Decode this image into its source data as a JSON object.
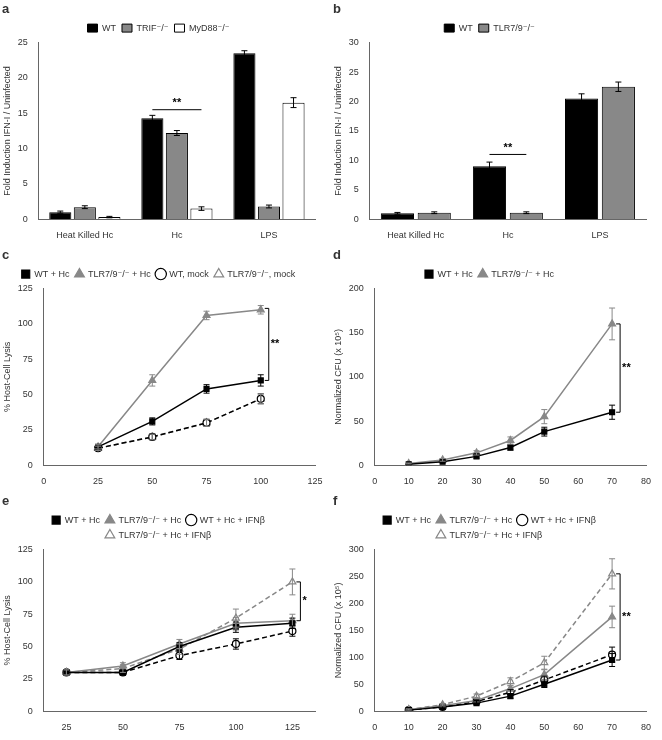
{
  "chart_data": [
    {
      "type": "bar",
      "title": "a",
      "ylabel": "Fold Induction IFN-I / Uninfected",
      "categories": [
        "Heat Killed Hc",
        "Hc",
        "LPS"
      ],
      "series": [
        {
          "name": "WT",
          "color": "#000000",
          "values": [
            1.0,
            14.3,
            23.5
          ],
          "errors": [
            0.15,
            0.4,
            0.35
          ]
        },
        {
          "name": "TRIF⁻/⁻",
          "color": "#888888",
          "values": [
            1.7,
            12.2,
            1.8
          ],
          "errors": [
            0.2,
            0.35,
            0.2
          ]
        },
        {
          "name": "MyD88⁻/⁻",
          "color": "#ffffff",
          "values": [
            0.3,
            1.5,
            16.5
          ],
          "errors": [
            0.1,
            0.25,
            0.7
          ]
        }
      ],
      "ylim": [
        0,
        25
      ],
      "yticks": [
        0,
        5,
        10,
        15,
        20,
        25
      ],
      "grid": false,
      "legend": "top",
      "annotations": [
        {
          "text": "**",
          "y": 15.5,
          "category": "Hc"
        }
      ]
    },
    {
      "type": "bar",
      "title": "b",
      "ylabel": "Fold Induction IFN-I / Uninfected",
      "categories": [
        "Heat Killed Hc",
        "Hc",
        "LPS"
      ],
      "series": [
        {
          "name": "WT",
          "color": "#000000",
          "values": [
            1.0,
            9.0,
            20.5
          ],
          "errors": [
            0.15,
            0.7,
            0.8
          ]
        },
        {
          "name": "TLR7/9⁻/⁻",
          "color": "#888888",
          "values": [
            1.1,
            1.1,
            22.5
          ],
          "errors": [
            0.15,
            0.15,
            0.8
          ]
        }
      ],
      "ylim": [
        0,
        30
      ],
      "yticks": [
        0,
        5,
        10,
        15,
        20,
        25,
        30
      ],
      "grid": false,
      "legend": "top",
      "annotations": [
        {
          "text": "**",
          "y": 11.0,
          "category": "Hc"
        }
      ]
    },
    {
      "type": "line",
      "title": "c",
      "ylabel": "% Host-Cell Lysis",
      "x": [
        25,
        50,
        75,
        100
      ],
      "series": [
        {
          "name": "WT + Hc",
          "color": "#000000",
          "marker": "square",
          "line_style": "solid",
          "values": [
            13,
            31,
            54,
            60
          ],
          "errors": [
            1.5,
            2.5,
            3,
            4
          ]
        },
        {
          "name": "TLR7/9⁻/⁻ + Hc",
          "color": "#888888",
          "marker": "triangle",
          "line_style": "solid",
          "values": [
            13,
            60,
            106,
            110
          ],
          "errors": [
            1.5,
            4,
            3,
            3
          ]
        },
        {
          "name": "WT, mock",
          "color": "#000000",
          "marker": "hollow circle",
          "line_style": "dashed",
          "values": [
            12,
            20,
            30,
            47
          ],
          "errors": [
            1.5,
            2,
            2.5,
            3.5
          ]
        },
        {
          "name": "TLR7/9⁻/⁻, mock",
          "color": "#888888",
          "marker": "hollow triangle",
          "line_style": "dashed",
          "values": [
            12,
            20,
            30,
            47
          ],
          "errors": [
            1.5,
            2,
            2.5,
            3.5
          ]
        }
      ],
      "xlim": [
        0,
        125
      ],
      "xticks": [
        0,
        25,
        50,
        75,
        100,
        125
      ],
      "ylim": [
        0,
        125
      ],
      "yticks": [
        0,
        25,
        50,
        75,
        100,
        125
      ],
      "grid": false,
      "legend": "top",
      "annotations": [
        {
          "text": "**",
          "y_top": 111,
          "y_bottom": 60
        }
      ]
    },
    {
      "type": "line",
      "title": "d",
      "ylabel": "Normalized CFU (x 10⁵)",
      "x": [
        10,
        20,
        30,
        40,
        50,
        70
      ],
      "series": [
        {
          "name": "WT + Hc",
          "color": "#000000",
          "marker": "square",
          "line_style": "solid",
          "values": [
            1,
            4,
            10,
            20,
            38,
            60
          ],
          "errors": [
            0.5,
            1,
            2,
            3,
            5,
            8
          ]
        },
        {
          "name": "TLR7/9⁻/⁻ + Hc",
          "color": "#888888",
          "marker": "triangle",
          "line_style": "solid",
          "values": [
            2,
            6,
            14,
            28,
            55,
            160
          ],
          "errors": [
            0.5,
            1.5,
            2.5,
            4,
            8,
            18
          ]
        }
      ],
      "xlim": [
        0,
        80
      ],
      "xticks": [
        0,
        10,
        20,
        30,
        40,
        50,
        60,
        70,
        80
      ],
      "ylim": [
        0,
        200
      ],
      "yticks": [
        0,
        50,
        100,
        150,
        200
      ],
      "grid": false,
      "legend": "top",
      "annotations": [
        {
          "text": "**",
          "y_top": 160,
          "y_bottom": 60
        }
      ]
    },
    {
      "type": "line",
      "title": "e",
      "ylabel": "% Host-Cell Lysis",
      "x": [
        25,
        50,
        75,
        100,
        125
      ],
      "series": [
        {
          "name": "WT + Hc",
          "color": "#000000",
          "marker": "square",
          "line_style": "solid",
          "values": [
            30,
            30,
            50,
            65,
            68
          ],
          "errors": [
            2,
            2,
            3,
            4,
            4
          ]
        },
        {
          "name": "TLR7/9⁻/⁻ + Hc",
          "color": "#888888",
          "marker": "triangle",
          "line_style": "solid",
          "values": [
            30,
            35,
            52,
            68,
            70
          ],
          "errors": [
            2,
            2.5,
            3.5,
            4.5,
            5
          ]
        },
        {
          "name": "WT + Hc + IFNβ",
          "color": "#000000",
          "marker": "hollow circle",
          "line_style": "dashed",
          "values": [
            30,
            30,
            43,
            52,
            62
          ],
          "errors": [
            2,
            2,
            3,
            4,
            4
          ]
        },
        {
          "name": "TLR7/9⁻/⁻ + Hc + IFNβ",
          "color": "#888888",
          "marker": "hollow triangle",
          "line_style": "dashed",
          "values": [
            30,
            33,
            48,
            72,
            100
          ],
          "errors": [
            2,
            3,
            4,
            7,
            10
          ]
        }
      ],
      "xlim": [
        15,
        135
      ],
      "xticks": [
        25,
        50,
        75,
        100,
        125
      ],
      "ylim": [
        0,
        125
      ],
      "yticks": [
        0,
        25,
        50,
        75,
        100,
        125
      ],
      "grid": false,
      "legend": "top",
      "annotations": [
        {
          "text": "*",
          "y_top": 100,
          "y_bottom": 70
        }
      ]
    },
    {
      "type": "line",
      "title": "f",
      "ylabel": "Normalized CFU (x 10⁵)",
      "x": [
        10,
        20,
        30,
        40,
        50,
        70
      ],
      "series": [
        {
          "name": "WT + Hc",
          "color": "#000000",
          "marker": "square",
          "line_style": "solid",
          "values": [
            2,
            8,
            15,
            28,
            50,
            95
          ],
          "errors": [
            1,
            2,
            3,
            4,
            6,
            12
          ]
        },
        {
          "name": "TLR7/9⁻/⁻ + Hc",
          "color": "#888888",
          "marker": "triangle",
          "line_style": "solid",
          "values": [
            3,
            10,
            20,
            42,
            68,
            175
          ],
          "errors": [
            1,
            2,
            3,
            5,
            9,
            20
          ]
        },
        {
          "name": "WT + Hc + IFNβ",
          "color": "#000000",
          "marker": "hollow circle",
          "line_style": "dashed",
          "values": [
            2,
            8,
            18,
            35,
            58,
            105
          ],
          "errors": [
            1,
            2,
            3,
            5,
            7,
            14
          ]
        },
        {
          "name": "TLR7/9⁻/⁻ + Hc + IFNβ",
          "color": "#888888",
          "marker": "hollow triangle",
          "line_style": "dashed",
          "values": [
            3,
            12,
            28,
            55,
            90,
            255
          ],
          "errors": [
            1,
            2,
            4,
            7,
            12,
            28
          ]
        }
      ],
      "xlim": [
        0,
        80
      ],
      "xticks": [
        0,
        10,
        20,
        30,
        40,
        50,
        60,
        70,
        80
      ],
      "ylim": [
        0,
        300
      ],
      "yticks": [
        0,
        50,
        100,
        150,
        200,
        250,
        300
      ],
      "grid": false,
      "legend": "top",
      "annotations": [
        {
          "text": "**",
          "y_top": 255,
          "y_bottom": 95
        }
      ]
    }
  ]
}
